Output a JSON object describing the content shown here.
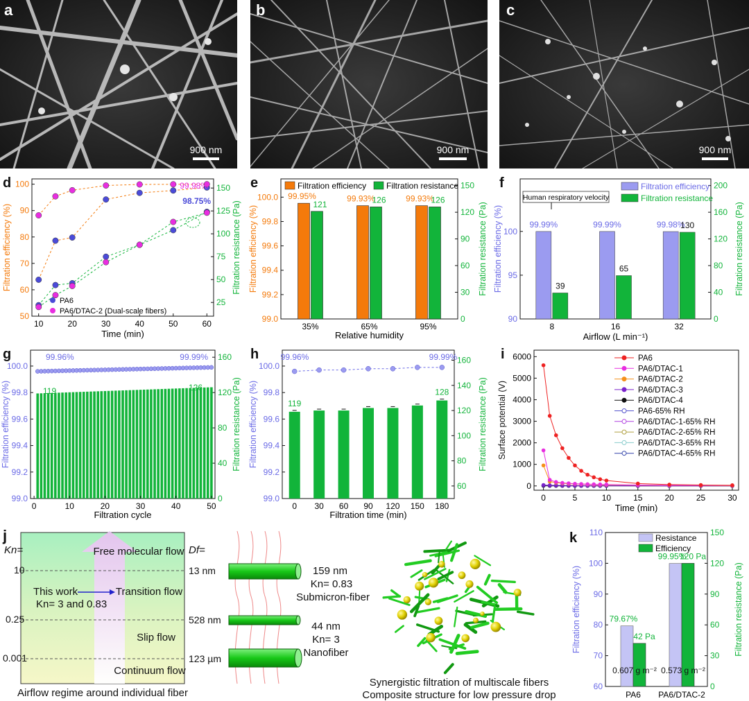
{
  "sem_panels": [
    {
      "letter": "a",
      "scale": "900 nm"
    },
    {
      "letter": "b",
      "scale": "900 nm"
    },
    {
      "letter": "c",
      "scale": "900 nm"
    }
  ],
  "colors": {
    "orange": "#f47a0b",
    "green": "#12b43a",
    "blue": "#4b4bd8",
    "magenta": "#e82ee0",
    "violet": "#6a6ae6",
    "barblue": "#9b9bf0",
    "lightbar": "#c4c4f5",
    "red": "#ee2222"
  },
  "chart_data": [
    {
      "panel": "d",
      "type": "scatter",
      "xlabel": "Time (min)",
      "ylabel_left": "Filtration efficiency (%)",
      "ylabel_right": "Filtration resistance (Pa)",
      "xlim": [
        8,
        62
      ],
      "xticks": [
        10,
        20,
        30,
        40,
        50,
        60
      ],
      "ylim_left": [
        50,
        102
      ],
      "yticks_left": [
        50,
        60,
        70,
        80,
        90,
        100
      ],
      "ylim_right": [
        10,
        160
      ],
      "yticks_right": [
        25,
        50,
        75,
        100,
        125,
        150
      ],
      "annotations": {
        "top_value": "99.98%",
        "second_value": "98.75%"
      },
      "series": [
        {
          "name": "PA6",
          "axis": "left",
          "x": [
            10,
            15,
            20,
            30,
            40,
            50,
            60
          ],
          "y": [
            63.8,
            78.6,
            79.8,
            94.2,
            96.7,
            97.6,
            98.75
          ]
        },
        {
          "name": "PA6/DTAC-2 (Dual-scale fibers)",
          "axis": "left",
          "x": [
            10,
            15,
            20,
            30,
            40,
            50,
            60
          ],
          "y": [
            88.2,
            95.4,
            97.7,
            99.5,
            99.9,
            99.95,
            99.98
          ]
        },
        {
          "name": "PA6 resistance",
          "axis": "right",
          "x": [
            10,
            15,
            20,
            30,
            40,
            50,
            60
          ],
          "y": [
            22,
            44,
            46,
            75,
            88,
            104,
            124
          ]
        },
        {
          "name": "PA6/DTAC-2 resistance",
          "axis": "right",
          "x": [
            10,
            15,
            20,
            30,
            40,
            50,
            60
          ],
          "y": [
            20,
            33,
            43,
            69,
            88,
            113,
            123
          ]
        }
      ],
      "legend": [
        "PA6",
        "PA6/DTAC-2 (Dual-scale fibers)"
      ]
    },
    {
      "panel": "e",
      "type": "bar",
      "xlabel": "Relative humidity",
      "ylabel_left": "Filtration efficiency (%)",
      "ylabel_right": "Filtration resistance (Pa)",
      "categories": [
        "35%",
        "65%",
        "95%"
      ],
      "ylim_left": [
        99.0,
        100.15
      ],
      "yticks_left": [
        "99.0",
        "99.2",
        "99.4",
        "99.6",
        "99.8",
        "100.0"
      ],
      "ylim_right": [
        0,
        157.5
      ],
      "yticks_right": [
        "0",
        "30",
        "60",
        "90",
        "120",
        "150"
      ],
      "series": [
        {
          "name": "Filtration efficiency",
          "axis": "left",
          "values": [
            99.95,
            99.93,
            99.93
          ],
          "labels": [
            "99.95%",
            "99.93%",
            "99.93%"
          ]
        },
        {
          "name": "Filtration resistance",
          "axis": "right",
          "values": [
            121,
            126,
            126
          ],
          "labels": [
            "121",
            "126",
            "126"
          ]
        }
      ]
    },
    {
      "panel": "f",
      "type": "bar",
      "xlabel": "Airflow (L min⁻¹)",
      "ylabel_left": "Filtration efficiency (%)",
      "ylabel_right": "Filtration resistance (Pa)",
      "categories": [
        "8",
        "16",
        "32"
      ],
      "ylim_left": [
        90,
        106
      ],
      "yticks_left": [
        "90",
        "95",
        "100"
      ],
      "ylim_right": [
        0,
        210
      ],
      "yticks_right": [
        "0",
        "40",
        "80",
        "120",
        "160",
        "200"
      ],
      "annotation": "Human respiratory velocity",
      "series": [
        {
          "name": "Filtration efficiency",
          "axis": "left",
          "values": [
            99.99,
            99.99,
            99.98
          ],
          "labels": [
            "99.99%",
            "99.99%",
            "99.98%"
          ]
        },
        {
          "name": "Filtration resistance",
          "axis": "right",
          "values": [
            39,
            65,
            130
          ],
          "labels": [
            "39",
            "65",
            "130"
          ]
        }
      ]
    },
    {
      "panel": "g",
      "type": "bar",
      "xlabel": "Filtration cycle",
      "ylabel_left": "Filtration efficiency (%)",
      "ylabel_right": "Filtration resistance (Pa)",
      "xlim": [
        -1,
        51
      ],
      "xticks": [
        0,
        10,
        20,
        30,
        40,
        50
      ],
      "ylim_left": [
        99.0,
        100.12
      ],
      "yticks_left": [
        "99.0",
        "99.2",
        "99.4",
        "99.6",
        "99.8",
        "100.0"
      ],
      "ylim_right": [
        0,
        168
      ],
      "yticks_right": [
        "0",
        "40",
        "80",
        "120",
        "160"
      ],
      "efficiency_first": 99.96,
      "efficiency_last": 99.99,
      "resistance_first": 119,
      "resistance_last": 126,
      "labels": {
        "eff_first": "99.96%",
        "eff_last": "99.99%",
        "res_first": "119",
        "res_last": "126"
      },
      "cycles": 50
    },
    {
      "panel": "h",
      "type": "bar",
      "xlabel": "Filtration time (min)",
      "ylabel_left": "Filtration efficiency (%)",
      "ylabel_right": "Filtration resistance (Pa)",
      "categories": [
        "0",
        "30",
        "60",
        "90",
        "120",
        "150",
        "180"
      ],
      "ylim_left": [
        99.0,
        100.12
      ],
      "yticks_left": [
        "99.0",
        "99.2",
        "99.4",
        "99.6",
        "99.8",
        "100.0"
      ],
      "ylim_right": [
        50,
        168
      ],
      "yticks_right": [
        "60",
        "80",
        "100",
        "120",
        "140",
        "160"
      ],
      "series": [
        {
          "name": "Filtration efficiency",
          "axis": "left",
          "values": [
            99.96,
            99.97,
            99.97,
            99.98,
            99.98,
            99.99,
            99.99
          ]
        },
        {
          "name": "Filtration resistance",
          "axis": "right",
          "values": [
            119,
            120,
            120,
            122,
            122,
            124,
            128
          ]
        }
      ],
      "labels": {
        "eff_first": "99.96%",
        "eff_last": "99.99%",
        "res_first": "119",
        "res_last": "128"
      }
    },
    {
      "panel": "i",
      "type": "line",
      "xlabel": "Time (min)",
      "ylabel": "Surface potential (V)",
      "xlim": [
        -1.5,
        31
      ],
      "xticks": [
        0,
        5,
        10,
        15,
        20,
        25,
        30
      ],
      "ylim": [
        -200,
        6300
      ],
      "yticks": [
        0,
        1000,
        2000,
        3000,
        4000,
        5000,
        6000
      ],
      "x": [
        0,
        1,
        2,
        3,
        4,
        5,
        6,
        7,
        8,
        9,
        10,
        15,
        20,
        25,
        30
      ],
      "series": [
        {
          "name": "PA6",
          "color": "#ee2222",
          "y": [
            5600,
            3250,
            2350,
            1750,
            1300,
            950,
            700,
            520,
            400,
            310,
            250,
            110,
            60,
            40,
            30
          ]
        },
        {
          "name": "PA6/DTAC-1",
          "color": "#e82ee0",
          "y": [
            1650,
            280,
            180,
            140,
            120,
            100,
            90,
            80,
            75,
            70,
            65,
            40,
            30,
            25,
            20
          ]
        },
        {
          "name": "PA6/DTAC-2",
          "color": "#f5901a",
          "y": [
            950,
            200,
            150,
            120,
            100,
            90,
            80,
            70,
            60,
            55,
            50,
            35,
            25,
            20,
            15
          ]
        },
        {
          "name": "PA6/DTAC-3",
          "color": "#7a22cc",
          "y": [
            40,
            30,
            25,
            20,
            18,
            16,
            15,
            14,
            13,
            12,
            12,
            10,
            9,
            8,
            8
          ]
        },
        {
          "name": "PA6/DTAC-4",
          "color": "#111111",
          "y": [
            20,
            15,
            12,
            10,
            10,
            9,
            9,
            8,
            8,
            8,
            8,
            7,
            7,
            6,
            6
          ]
        },
        {
          "name": "PA6-65% RH",
          "color": "#5555cc",
          "y": [
            10,
            8,
            7,
            6,
            6,
            5,
            5,
            5,
            5,
            5,
            5,
            4,
            4,
            4,
            4
          ]
        },
        {
          "name": "PA6/DTAC-1-65% RH",
          "color": "#b040e0",
          "y": [
            8,
            6,
            5,
            5,
            4,
            4,
            4,
            4,
            4,
            4,
            4,
            3,
            3,
            3,
            3
          ]
        },
        {
          "name": "PA6/DTAC-2-65% RH",
          "color": "#b0a040",
          "y": [
            6,
            5,
            4,
            4,
            4,
            3,
            3,
            3,
            3,
            3,
            3,
            3,
            2,
            2,
            2
          ]
        },
        {
          "name": "PA6/DTAC-3-65% RH",
          "color": "#88cccc",
          "y": [
            5,
            4,
            4,
            3,
            3,
            3,
            3,
            3,
            3,
            3,
            3,
            2,
            2,
            2,
            2
          ]
        },
        {
          "name": "PA6/DTAC-4-65% RH",
          "color": "#3344aa",
          "y": [
            4,
            3,
            3,
            3,
            3,
            2,
            2,
            2,
            2,
            2,
            2,
            2,
            2,
            2,
            2
          ]
        }
      ]
    },
    {
      "panel": "k",
      "type": "bar",
      "ylabel_left": "Filtration efficiency (%)",
      "ylabel_right": "Filtration resistance (Pa)",
      "categories": [
        "PA6",
        "PA6/DTAC-2"
      ],
      "ylim_left": [
        60,
        110
      ],
      "yticks_left": [
        "60",
        "70",
        "80",
        "90",
        "100",
        "110"
      ],
      "ylim_right": [
        0,
        150
      ],
      "yticks_right": [
        "0",
        "30",
        "60",
        "90",
        "120",
        "150"
      ],
      "legend": [
        "Resistance",
        "Efficiency"
      ],
      "series": [
        {
          "name": "Efficiency",
          "axis": "left",
          "values": [
            79.67,
            99.95
          ],
          "labels": [
            "79.67%",
            "99.95%"
          ]
        },
        {
          "name": "Resistance",
          "axis": "right",
          "values": [
            42,
            120
          ],
          "labels": [
            "42 Pa",
            "120 Pa"
          ]
        }
      ],
      "basis_weights": [
        "0.607 g m⁻²",
        "0.573 g m⁻²"
      ]
    }
  ],
  "panel_j": {
    "letter": "j",
    "kn_label": "Kn=",
    "kn_values": [
      "10",
      "0.25",
      "0.001"
    ],
    "regimes": [
      "Free molecular flow",
      "Transition  flow",
      "Slip  flow",
      "Continuum flow"
    ],
    "this_work": "This work",
    "this_work_kn": "Kn= 3 and 0.83",
    "caption": "Airflow regime around individual fiber",
    "df_label": "Df=",
    "diameters": [
      "13 nm",
      "528 nm",
      "123 µm"
    ],
    "submicron": {
      "size": "159 nm",
      "kn": "Kn= 0.83",
      "name": "Submicron-fiber"
    },
    "nanofiber": {
      "size": "44 nm",
      "kn": "Kn= 3",
      "name": "Nanofiber"
    },
    "caption2_line1": "Synergistic filtration of multiscale fibers",
    "caption2_line2": "Composite structure for low pressure drop"
  }
}
